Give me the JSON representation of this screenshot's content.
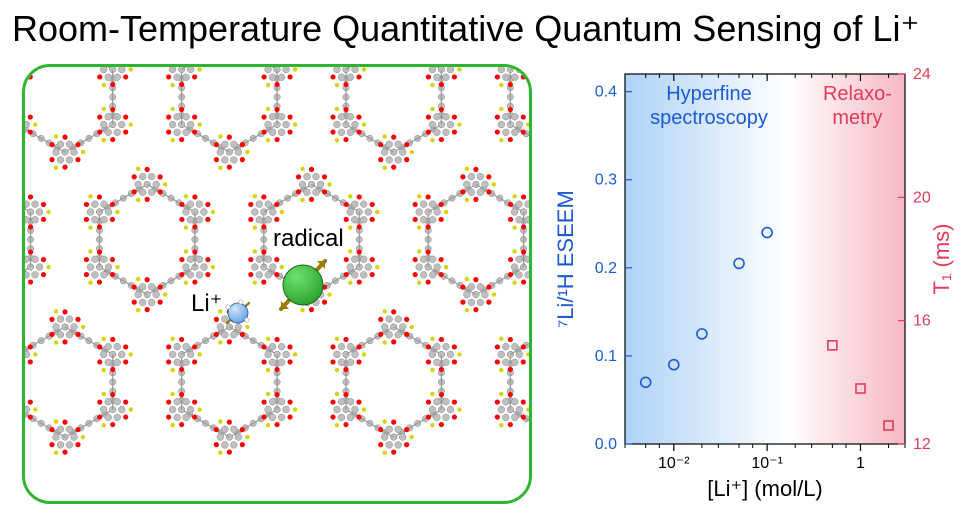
{
  "title": "Room-Temperature Quantitative Quantum Sensing of Li⁺",
  "diagram": {
    "radical_label": "radical",
    "li_label": "Li⁺",
    "border_color": "#2fb52f",
    "lattice_node_colors": {
      "gray": "#bfbfbf",
      "red": "#ff0000",
      "yellow": "#d4d400"
    },
    "radical_sphere_color": "#2fa82f",
    "li_sphere_color": "#6aa7e6"
  },
  "chart": {
    "type": "scatter",
    "xlabel": "[Li⁺] (mol/L)",
    "ylabel_left": "⁷Li/¹H ESEEM",
    "ylabel_right": "T₁ (ms)",
    "xscale": "log",
    "xlim": [
      0.003,
      3
    ],
    "xticks": [
      0.01,
      0.1,
      1
    ],
    "xtick_labels": [
      "10⁻²",
      "10⁻¹",
      "1"
    ],
    "ylim_left": [
      0.0,
      0.42
    ],
    "yticks_left": [
      0.0,
      0.1,
      0.2,
      0.3,
      0.4
    ],
    "ytick_labels_left": [
      "0.0",
      "0.1",
      "0.2",
      "0.3",
      "0.4"
    ],
    "ylim_right": [
      12,
      24
    ],
    "yticks_right": [
      12,
      16,
      20,
      24
    ],
    "ytick_labels_right": [
      "12",
      "16",
      "20",
      "24"
    ],
    "left_color": "#1b5bd6",
    "right_color": "#e63a5a",
    "overlay_left": {
      "label": "Hyperfine\nspectroscopy",
      "color": "#1b5bd6"
    },
    "overlay_right": {
      "label": "Relaxo-\nmetry",
      "color": "#e63a5a"
    },
    "series": [
      {
        "name": "eseem",
        "axis": "left",
        "marker": "circle",
        "color": "#1b5bd6",
        "size": 10,
        "data": [
          {
            "x": 0.005,
            "y": 0.07
          },
          {
            "x": 0.01,
            "y": 0.09
          },
          {
            "x": 0.02,
            "y": 0.125
          },
          {
            "x": 0.05,
            "y": 0.205
          },
          {
            "x": 0.1,
            "y": 0.24
          }
        ]
      },
      {
        "name": "t1",
        "axis": "right",
        "marker": "square",
        "color": "#e63a5a",
        "size": 9,
        "data": [
          {
            "x": 0.5,
            "y": 15.2
          },
          {
            "x": 1.0,
            "y": 13.8
          },
          {
            "x": 2.0,
            "y": 12.6
          }
        ]
      }
    ],
    "plot_background_gradient": {
      "left": "#aed2f7",
      "mid": "#ffffff",
      "right": "#f6b8c4"
    },
    "axis_fontsize": 18,
    "tick_fontsize": 16,
    "label_fontsize": 22,
    "overlay_fontsize": 20
  }
}
